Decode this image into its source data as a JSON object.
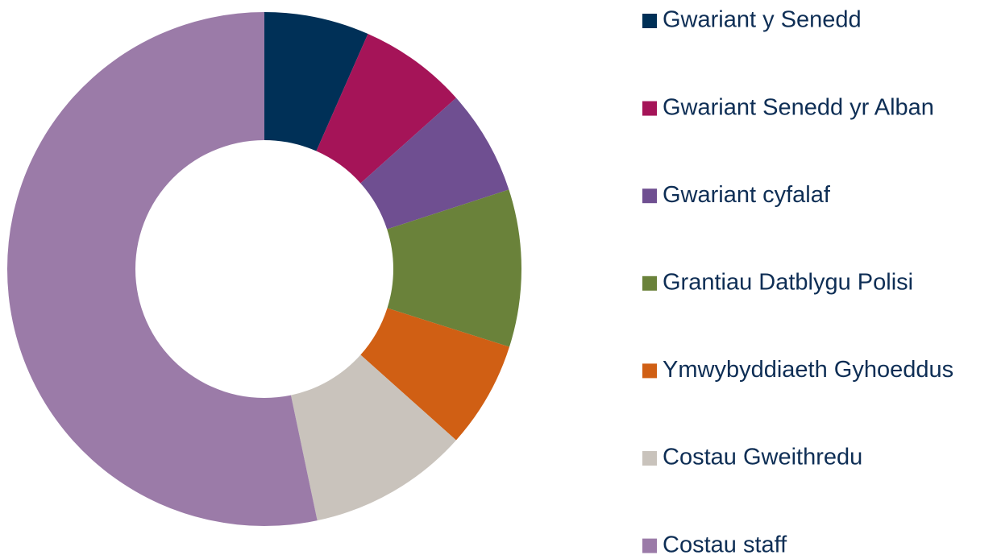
{
  "chart_data": {
    "type": "donut",
    "categories": [
      "Gwariant y Senedd",
      "Gwariant Senedd yr Alban",
      "Gwariant cyfalaf",
      "Grantiau Datblygu Polisi",
      "Ymwybyddiaeth Gyhoeddus",
      "Costau Gweithredu",
      "Costau staff"
    ],
    "values": [
      6.6,
      6.8,
      6.6,
      9.9,
      6.7,
      10.1,
      53.3
    ],
    "colors": [
      "#003057",
      "#a51458",
      "#6f4f91",
      "#6a823a",
      "#d05f14",
      "#c9c3bc",
      "#9b7ba8"
    ],
    "legend": "right"
  }
}
